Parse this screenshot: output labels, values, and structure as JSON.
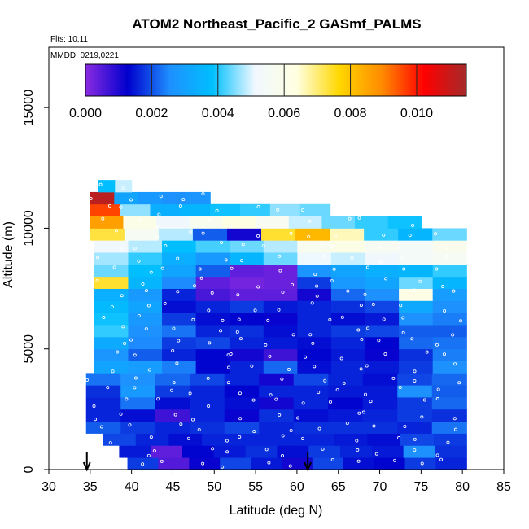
{
  "chart_data": {
    "type": "heatmap",
    "title": "ATOM2 Northeast_Pacific_2 GASmf_PALMS",
    "flights_label": "Flts: 10,11",
    "date_label": "MMDD: 0219,0221",
    "xlabel": "Latitude (deg N)",
    "ylabel": "Altitude (m)",
    "xlim": [
      30,
      85
    ],
    "ylim": [
      0,
      17500
    ],
    "x_ticks": [
      30,
      35,
      40,
      45,
      50,
      55,
      60,
      65,
      70,
      75,
      80,
      85
    ],
    "y_ticks": [
      0,
      5000,
      10000,
      15000
    ],
    "grid": false,
    "colorbar": {
      "range": [
        0,
        0.0115
      ],
      "tick_values": [
        0.0,
        0.002,
        0.004,
        0.006,
        0.008,
        0.01
      ],
      "tick_labels": [
        "0.000",
        "0.002",
        "0.004",
        "0.006",
        "0.008",
        "0.010"
      ],
      "colors": [
        "#8a2be2",
        "#0000cd",
        "#1e90ff",
        "#00bfff",
        "#f0f8ff",
        "#ffffe0",
        "#ffd700",
        "#ff8c00",
        "#ff0000",
        "#a52a2a"
      ]
    },
    "arrows_at_latitude": [
      34.6,
      61.3
    ],
    "layers": [
      {
        "alt_bottom": 0,
        "alt_top": 500,
        "lat_start": 39.5,
        "lat_end": 80.5,
        "values": [
          0.0018,
          0.0005,
          0.0012,
          0.0019,
          0.0015,
          0.0011,
          0.0019,
          0.0014,
          0.0013,
          0.0018,
          0.0016
        ]
      },
      {
        "alt_bottom": 500,
        "alt_top": 1000,
        "lat_start": 38.5,
        "lat_end": 80.5,
        "values": [
          0.0015,
          0.0004,
          0.0013,
          0.0015,
          0.0017,
          0.0014,
          0.0018,
          0.0016,
          0.0015,
          0.0026,
          0.0017
        ]
      },
      {
        "alt_bottom": 1000,
        "alt_top": 1500,
        "lat_start": 36.5,
        "lat_end": 80.5,
        "values": [
          0.0019,
          0.0016,
          0.0014,
          0.0016,
          0.0016,
          0.0016,
          0.0016,
          0.0015,
          0.0014,
          0.0019,
          0.0018
        ]
      },
      {
        "alt_bottom": 1500,
        "alt_top": 2000,
        "lat_start": 34.5,
        "lat_end": 80.5,
        "values": [
          0.0021,
          0.0018,
          0.0016,
          0.0017,
          0.0019,
          0.0016,
          0.0017,
          0.0017,
          0.0017,
          0.0016,
          0.0023
        ]
      },
      {
        "alt_bottom": 2000,
        "alt_top": 2500,
        "lat_start": 34.5,
        "lat_end": 80.5,
        "values": [
          0.0016,
          0.0014,
          0.0007,
          0.0016,
          0.0012,
          0.0017,
          0.0014,
          0.0015,
          0.0016,
          0.0018,
          0.0017
        ]
      },
      {
        "alt_bottom": 2500,
        "alt_top": 3000,
        "lat_start": 34.5,
        "lat_end": 80.5,
        "values": [
          0.0016,
          0.0023,
          0.0014,
          0.0016,
          0.0014,
          0.0011,
          0.0016,
          0.0013,
          0.0015,
          0.0018,
          0.0022
        ]
      },
      {
        "alt_bottom": 3000,
        "alt_top": 3500,
        "lat_start": 34.5,
        "lat_end": 80.5,
        "values": [
          0.0017,
          0.0028,
          0.0018,
          0.0016,
          0.0013,
          0.0016,
          0.0016,
          0.0015,
          0.0015,
          0.0026,
          0.0021
        ]
      },
      {
        "alt_bottom": 3500,
        "alt_top": 4000,
        "lat_start": 34.5,
        "lat_end": 80.5,
        "values": [
          0.0023,
          0.0026,
          0.0022,
          0.0019,
          0.0016,
          0.0011,
          0.0019,
          0.0016,
          0.0014,
          0.0019,
          0.0022
        ]
      },
      {
        "alt_bottom": 4000,
        "alt_top": 4500,
        "lat_start": 35.5,
        "lat_end": 80.5,
        "values": [
          0.0031,
          0.0029,
          0.0024,
          0.0013,
          0.0016,
          0.0022,
          0.0014,
          0.0016,
          0.0015,
          0.0018,
          0.0026
        ]
      },
      {
        "alt_bottom": 4500,
        "alt_top": 5000,
        "lat_start": 35.5,
        "lat_end": 80.5,
        "values": [
          0.0027,
          0.0021,
          0.0016,
          0.0013,
          0.0011,
          0.0007,
          0.0013,
          0.0015,
          0.0012,
          0.0017,
          0.0024
        ]
      },
      {
        "alt_bottom": 5000,
        "alt_top": 5500,
        "lat_start": 35.5,
        "lat_end": 80.5,
        "values": [
          0.0033,
          0.0025,
          0.0018,
          0.0019,
          0.0016,
          0.0015,
          0.0014,
          0.0016,
          0.0013,
          0.0022,
          0.0023
        ]
      },
      {
        "alt_bottom": 5500,
        "alt_top": 6000,
        "lat_start": 35.5,
        "lat_end": 80.5,
        "values": [
          0.0041,
          0.0026,
          0.0023,
          0.0016,
          0.0017,
          0.0014,
          0.0016,
          0.0018,
          0.0019,
          0.0021,
          0.0021
        ]
      },
      {
        "alt_bottom": 6000,
        "alt_top": 6500,
        "lat_start": 35.5,
        "lat_end": 80.5,
        "values": [
          0.0039,
          0.0028,
          0.0018,
          0.0014,
          0.0013,
          0.0012,
          0.0016,
          0.0014,
          0.0015,
          0.0026,
          0.0024
        ]
      },
      {
        "alt_bottom": 6500,
        "alt_top": 7000,
        "lat_start": 35.5,
        "lat_end": 80.5,
        "values": [
          0.0037,
          0.0031,
          0.0014,
          0.0016,
          0.0018,
          0.0015,
          0.0016,
          0.0017,
          0.0019,
          0.0032,
          0.0026
        ]
      },
      {
        "alt_bottom": 7000,
        "alt_top": 7500,
        "lat_start": 35.5,
        "lat_end": 80.5,
        "values": [
          0.0034,
          0.0028,
          0.0016,
          0.0006,
          0.0004,
          0.0004,
          0.0011,
          0.0022,
          0.0026,
          0.0062,
          0.0029
        ]
      },
      {
        "alt_bottom": 7500,
        "alt_top": 8000,
        "lat_start": 35.5,
        "lat_end": 80.5,
        "values": [
          0.0074,
          0.0036,
          0.0025,
          0.0004,
          0.0002,
          0.0003,
          0.0018,
          0.0028,
          0.0031,
          0.0044,
          0.0036
        ]
      },
      {
        "alt_bottom": 8000,
        "alt_top": 8500,
        "lat_start": 35.5,
        "lat_end": 80.5,
        "values": [
          0.0044,
          0.0038,
          0.0031,
          0.0021,
          0.0004,
          0.0003,
          0.0027,
          0.0031,
          0.0034,
          0.0036,
          0.0041
        ]
      },
      {
        "alt_bottom": 8500,
        "alt_top": 9000,
        "lat_start": 35.5,
        "lat_end": 80.5,
        "values": [
          0.0047,
          0.0041,
          0.0034,
          0.0028,
          0.0036,
          0.0044,
          0.0051,
          0.0049,
          0.0052,
          0.0054,
          0.0056
        ]
      },
      {
        "alt_bottom": 9000,
        "alt_top": 9500,
        "lat_start": 35.5,
        "lat_end": 80.5,
        "values": [
          0.0052,
          0.0048,
          0.0038,
          0.0042,
          0.0044,
          0.0048,
          0.0058,
          0.0061,
          0.0057,
          0.0054,
          0.0059
        ]
      },
      {
        "alt_bottom": 9500,
        "alt_top": 10000,
        "lat_start": 35.0,
        "lat_end": 80.5,
        "values": [
          0.0073,
          0.0056,
          0.0048,
          0.0021,
          0.0011,
          0.0074,
          0.0082,
          0.0066,
          0.0041,
          0.0036,
          0.0044
        ]
      },
      {
        "alt_bottom": 10000,
        "alt_top": 10500,
        "lat_start": 35.0,
        "lat_end": 75.0,
        "values": [
          0.0086,
          0.0061,
          0.0052,
          0.0058,
          0.0063,
          0.0057,
          0.0049,
          0.0044,
          0.0041,
          0.0039
        ]
      },
      {
        "alt_bottom": 10500,
        "alt_top": 11000,
        "lat_start": 35.0,
        "lat_end": 64.0,
        "values": [
          0.0096,
          0.0046,
          0.0034,
          0.0036,
          0.0039,
          0.0041,
          0.0046,
          0.0044
        ]
      },
      {
        "alt_bottom": 11000,
        "alt_top": 11500,
        "lat_start": 35.0,
        "lat_end": 49.5,
        "values": [
          0.0112,
          0.0031,
          0.0028,
          0.0026,
          0.0027
        ]
      },
      {
        "alt_bottom": 11500,
        "alt_top": 12000,
        "lat_start": 36.0,
        "lat_end": 40.0,
        "values": [
          0.0038,
          0.0049
        ]
      }
    ]
  }
}
